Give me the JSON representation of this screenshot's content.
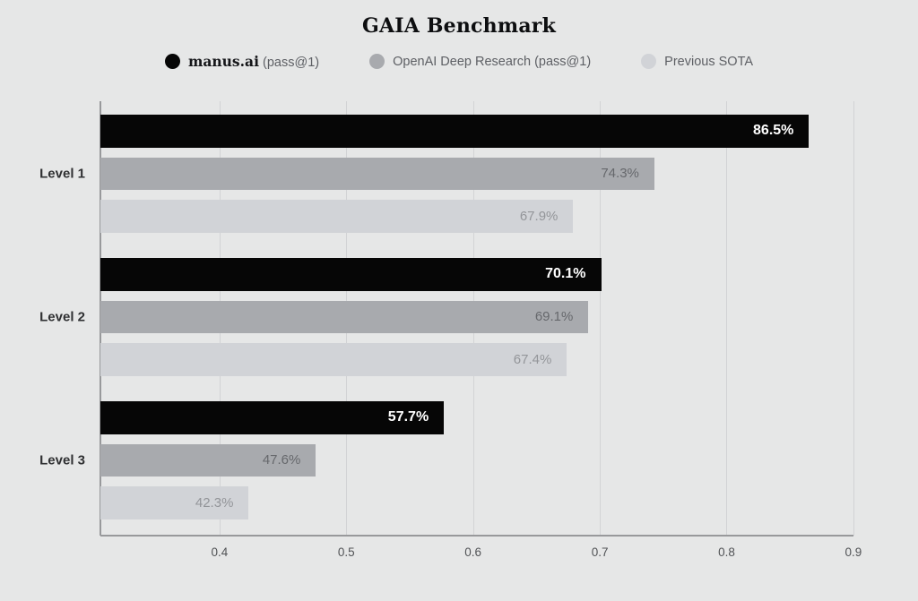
{
  "page": {
    "background": "#e6e7e7"
  },
  "chart_data": {
    "type": "bar",
    "orientation": "horizontal",
    "title": "GAIA Benchmark",
    "categories": [
      "Level 1",
      "Level 2",
      "Level 3"
    ],
    "series": [
      {
        "name": "manus.ai",
        "legend_suffix": "(pass@1)",
        "brand_emphasis": true,
        "bar_color": "#060606",
        "value_label_color": "#ffffff",
        "values": [
          0.865,
          0.701,
          0.577
        ],
        "value_labels": [
          "86.5%",
          "70.1%",
          "57.7%"
        ]
      },
      {
        "name": "OpenAI Deep Research",
        "legend_suffix": "(pass@1)",
        "brand_emphasis": false,
        "bar_color": "#a8aaae",
        "value_label_color": "#66686c",
        "values": [
          0.743,
          0.691,
          0.476
        ],
        "value_labels": [
          "74.3%",
          "69.1%",
          "47.6%"
        ]
      },
      {
        "name": "Previous SOTA",
        "legend_suffix": "",
        "brand_emphasis": false,
        "bar_color": "#d1d3d7",
        "value_label_color": "#939599",
        "values": [
          0.679,
          0.674,
          0.423
        ],
        "value_labels": [
          "67.9%",
          "67.4%",
          "42.3%"
        ]
      }
    ],
    "axis": {
      "xlim": [
        0.306,
        0.951
      ],
      "xticks": [
        0.4,
        0.5,
        0.6,
        0.7,
        0.8,
        0.9
      ],
      "xtick_labels": [
        "0.4",
        "0.5",
        "0.6",
        "0.7",
        "0.8",
        "0.9"
      ],
      "grid": "vertical",
      "axis_line_end_tick": 0.9
    },
    "legend_position": "top",
    "colors": {
      "gridline": "#d2d3d5",
      "axis_line": "#98999b",
      "category_label": "#2f3032",
      "tick_label": "#515356",
      "title": "#0d0e10",
      "legend_text": "#5d5f64",
      "legend_brand_text": "#151619"
    }
  }
}
